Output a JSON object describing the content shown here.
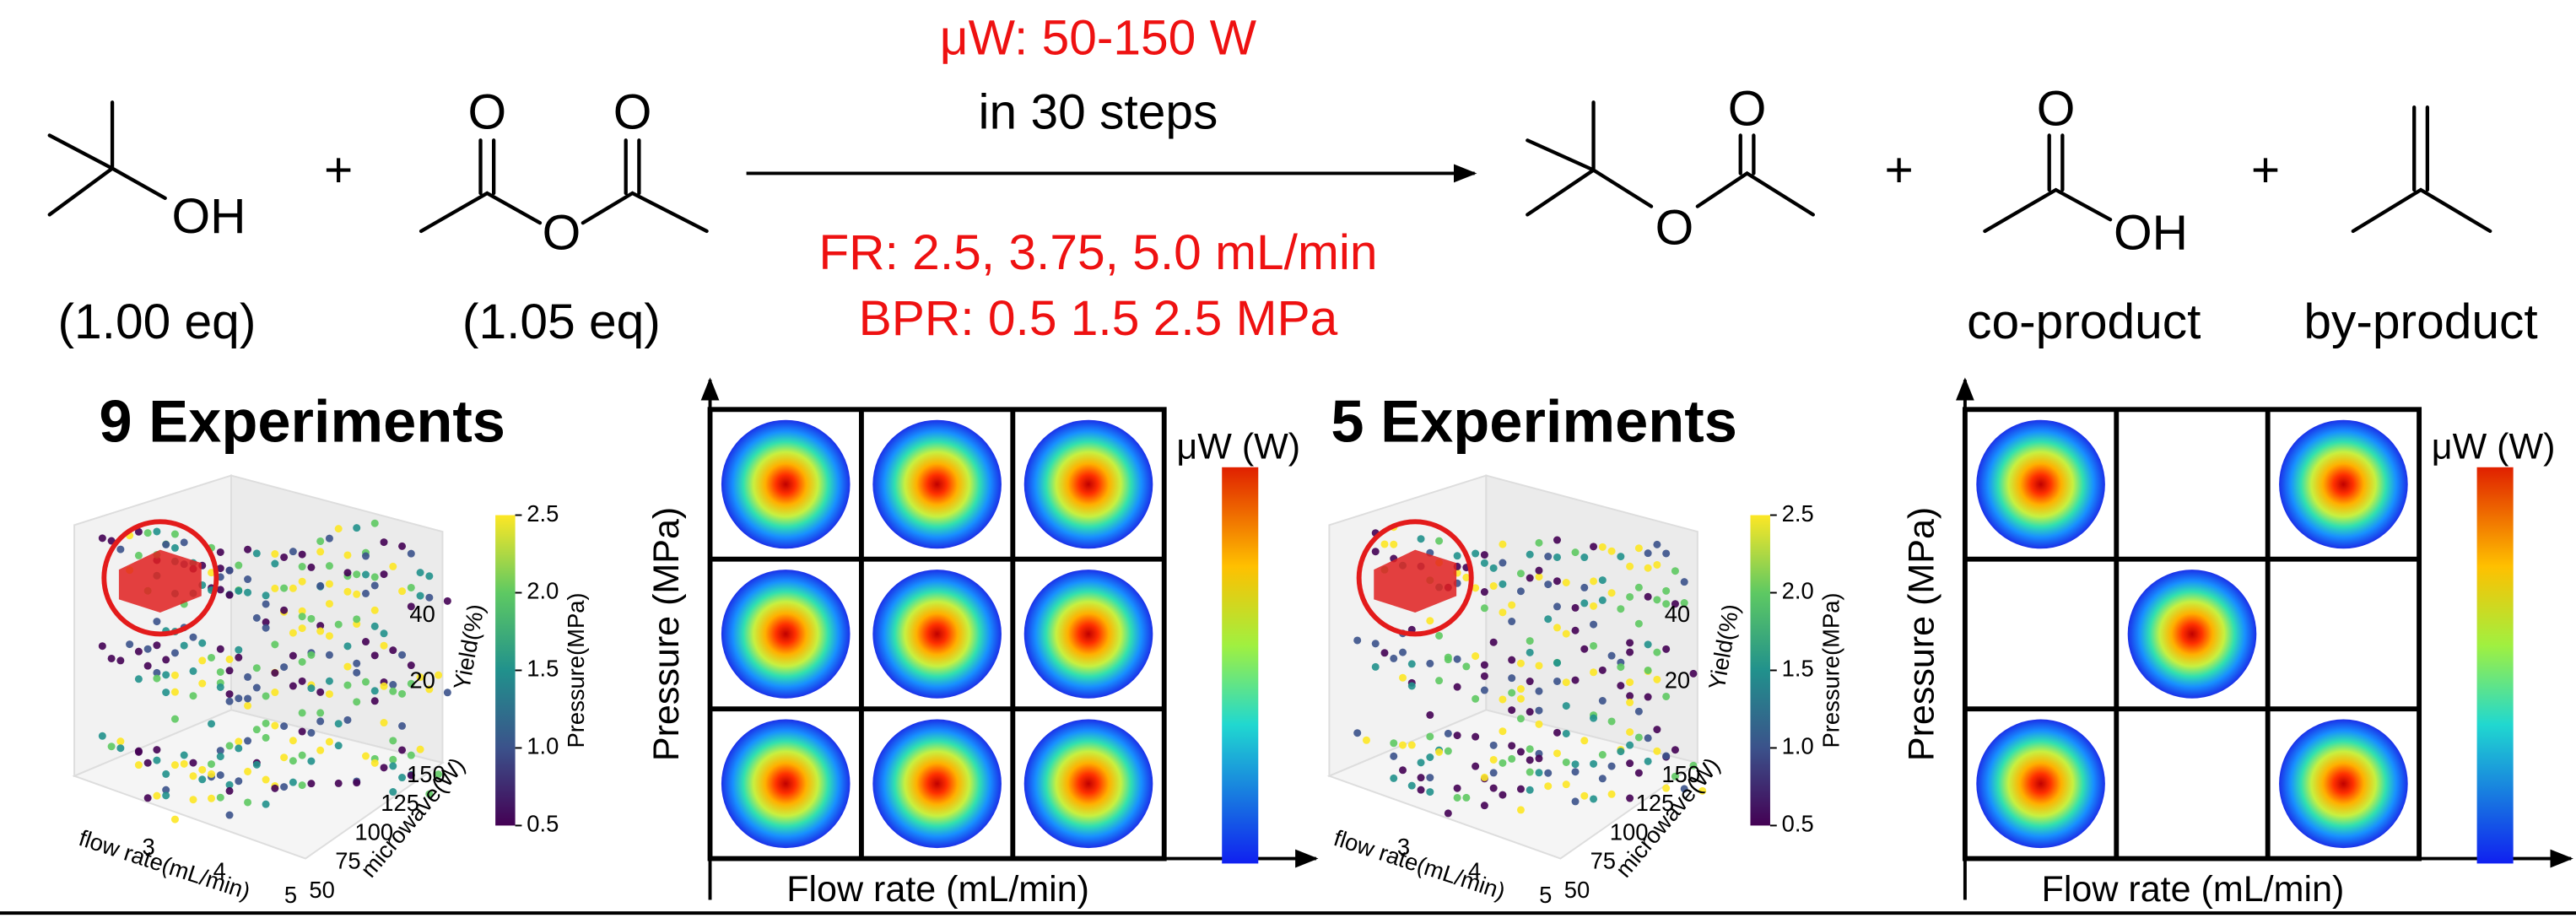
{
  "reaction": {
    "reactants": [
      {
        "atoms": [
          "OH"
        ],
        "equiv": "(1.00 eq)"
      },
      {
        "atoms": [
          "O",
          "O",
          "O"
        ],
        "equiv": "(1.05 eq)"
      }
    ],
    "plus_signs": [
      "+",
      "+",
      "+"
    ],
    "conditions_above": [
      "μW: 50-150 W",
      "in 30 steps"
    ],
    "conditions_below": [
      "FR: 2.5, 3.75, 5.0 mL/min",
      "BPR: 0.5 1.5 2.5 MPa"
    ],
    "products": [
      {
        "atoms": [
          "O",
          "O"
        ]
      },
      {
        "atoms": [
          "O",
          "OH"
        ],
        "role": "co-product"
      },
      {
        "role": "by-product"
      }
    ]
  },
  "panels": [
    {
      "title": "9 Experiments",
      "plot3d": {
        "x_label": "flow rate(mL/min)",
        "x_ticks": [
          3,
          4,
          5
        ],
        "y_label": "microwave(W)",
        "y_ticks": [
          50,
          75,
          100,
          125,
          150
        ],
        "z_label": "Yield(%)",
        "z_ticks": [
          20,
          40
        ],
        "colorbar_label": "Pressure(MPa)",
        "colorbar_ticks": [
          0.5,
          {
            "value": 1,
            "label": "1.0"
          },
          1.5,
          {
            "value": 2,
            "label": "2.0"
          },
          2.5
        ]
      },
      "design": {
        "y_label": "Pressure (MPa)",
        "x_label": "Flow rate (mL/min)",
        "colorbar_label": "μW (W)",
        "cells": [
          [
            true,
            true,
            true
          ],
          [
            true,
            true,
            true
          ],
          [
            true,
            true,
            true
          ]
        ]
      }
    },
    {
      "title": "5 Experiments",
      "plot3d": {
        "x_label": "flow rate(mL/min)",
        "x_ticks": [
          3,
          4,
          5
        ],
        "y_label": "microwave(W)",
        "y_ticks": [
          50,
          75,
          100,
          125,
          150
        ],
        "z_label": "Yield(%)",
        "z_ticks": [
          20,
          40
        ],
        "colorbar_label": "Pressure(MPa)",
        "colorbar_ticks": [
          0.5,
          {
            "value": 1,
            "label": "1.0"
          },
          1.5,
          {
            "value": 2,
            "label": "2.0"
          },
          2.5
        ]
      },
      "design": {
        "y_label": "Pressure (MPa)",
        "x_label": "Flow rate (mL/min)",
        "colorbar_label": "μW (W)",
        "cells": [
          [
            true,
            false,
            true
          ],
          [
            false,
            true,
            false
          ],
          [
            true,
            false,
            true
          ]
        ]
      }
    }
  ]
}
